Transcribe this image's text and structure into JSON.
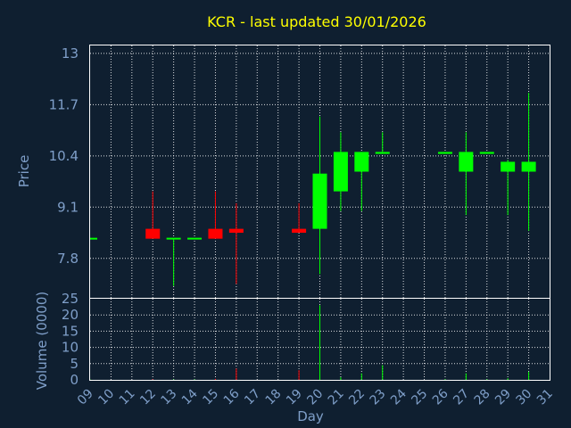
{
  "chart_data": {
    "type": "candlestick",
    "title": "KCR - last updated 30/01/2026",
    "price_panel": {
      "ylabel": "Price",
      "yticks": [
        7.8,
        9.1,
        10.4,
        11.7,
        13
      ],
      "ylim": [
        6.8,
        13.2
      ]
    },
    "volume_panel": {
      "ylabel": "Volume (0000)",
      "yticks": [
        0,
        5,
        10,
        15,
        20,
        25
      ],
      "ylim": [
        0,
        25
      ]
    },
    "xlabel": "Day",
    "x_tick_labels": [
      "09",
      "10",
      "11",
      "12",
      "13",
      "14",
      "15",
      "16",
      "17",
      "18",
      "19",
      "20",
      "21",
      "22",
      "23",
      "24",
      "25",
      "26",
      "27",
      "28",
      "29",
      "30",
      "31"
    ],
    "candles": [
      {
        "day": "09",
        "open": 8.3,
        "high": 8.3,
        "low": 8.3,
        "close": 8.3,
        "volume": 0.1
      },
      {
        "day": "12",
        "open": 8.55,
        "high": 9.5,
        "low": 8.3,
        "close": 8.3,
        "volume": 0.2
      },
      {
        "day": "13",
        "open": 8.3,
        "high": 8.3,
        "low": 7.1,
        "close": 8.3,
        "volume": 0.1
      },
      {
        "day": "14",
        "open": 8.3,
        "high": 8.3,
        "low": 8.3,
        "close": 8.3,
        "volume": 0.1
      },
      {
        "day": "15",
        "open": 8.55,
        "high": 9.5,
        "low": 8.3,
        "close": 8.3,
        "volume": 0.3
      },
      {
        "day": "16",
        "open": 8.55,
        "high": 9.2,
        "low": 7.15,
        "close": 8.45,
        "volume": 3.5
      },
      {
        "day": "19",
        "open": 8.55,
        "high": 9.2,
        "low": 8.45,
        "close": 8.45,
        "volume": 3.0
      },
      {
        "day": "20",
        "open": 8.55,
        "high": 11.4,
        "low": 7.4,
        "close": 9.95,
        "volume": 23
      },
      {
        "day": "21",
        "open": 9.5,
        "high": 11.0,
        "low": 9.0,
        "close": 10.5,
        "volume": 0.8
      },
      {
        "day": "22",
        "open": 10.0,
        "high": 10.5,
        "low": 9.0,
        "close": 10.5,
        "volume": 2.0
      },
      {
        "day": "23",
        "open": 10.45,
        "high": 11.0,
        "low": 10.45,
        "close": 10.5,
        "volume": 4.5
      },
      {
        "day": "26",
        "open": 10.45,
        "high": 10.5,
        "low": 10.45,
        "close": 10.5,
        "volume": 0.2
      },
      {
        "day": "27",
        "open": 10.0,
        "high": 11.0,
        "low": 8.9,
        "close": 10.5,
        "volume": 2.0
      },
      {
        "day": "28",
        "open": 10.45,
        "high": 10.5,
        "low": 10.45,
        "close": 10.5,
        "volume": 0.2
      },
      {
        "day": "29",
        "open": 10.0,
        "high": 10.3,
        "low": 8.9,
        "close": 10.25,
        "volume": 0.5
      },
      {
        "day": "30",
        "open": 10.0,
        "high": 12.0,
        "low": 8.5,
        "close": 10.25,
        "volume": 2.5
      }
    ],
    "colors": {
      "background": "#0f1f30",
      "up": "#00ff00",
      "down": "#ff0000",
      "title": "#ffff00",
      "axis_text": "#7f9fc9",
      "frame": "#ffffff"
    },
    "grid": true
  }
}
